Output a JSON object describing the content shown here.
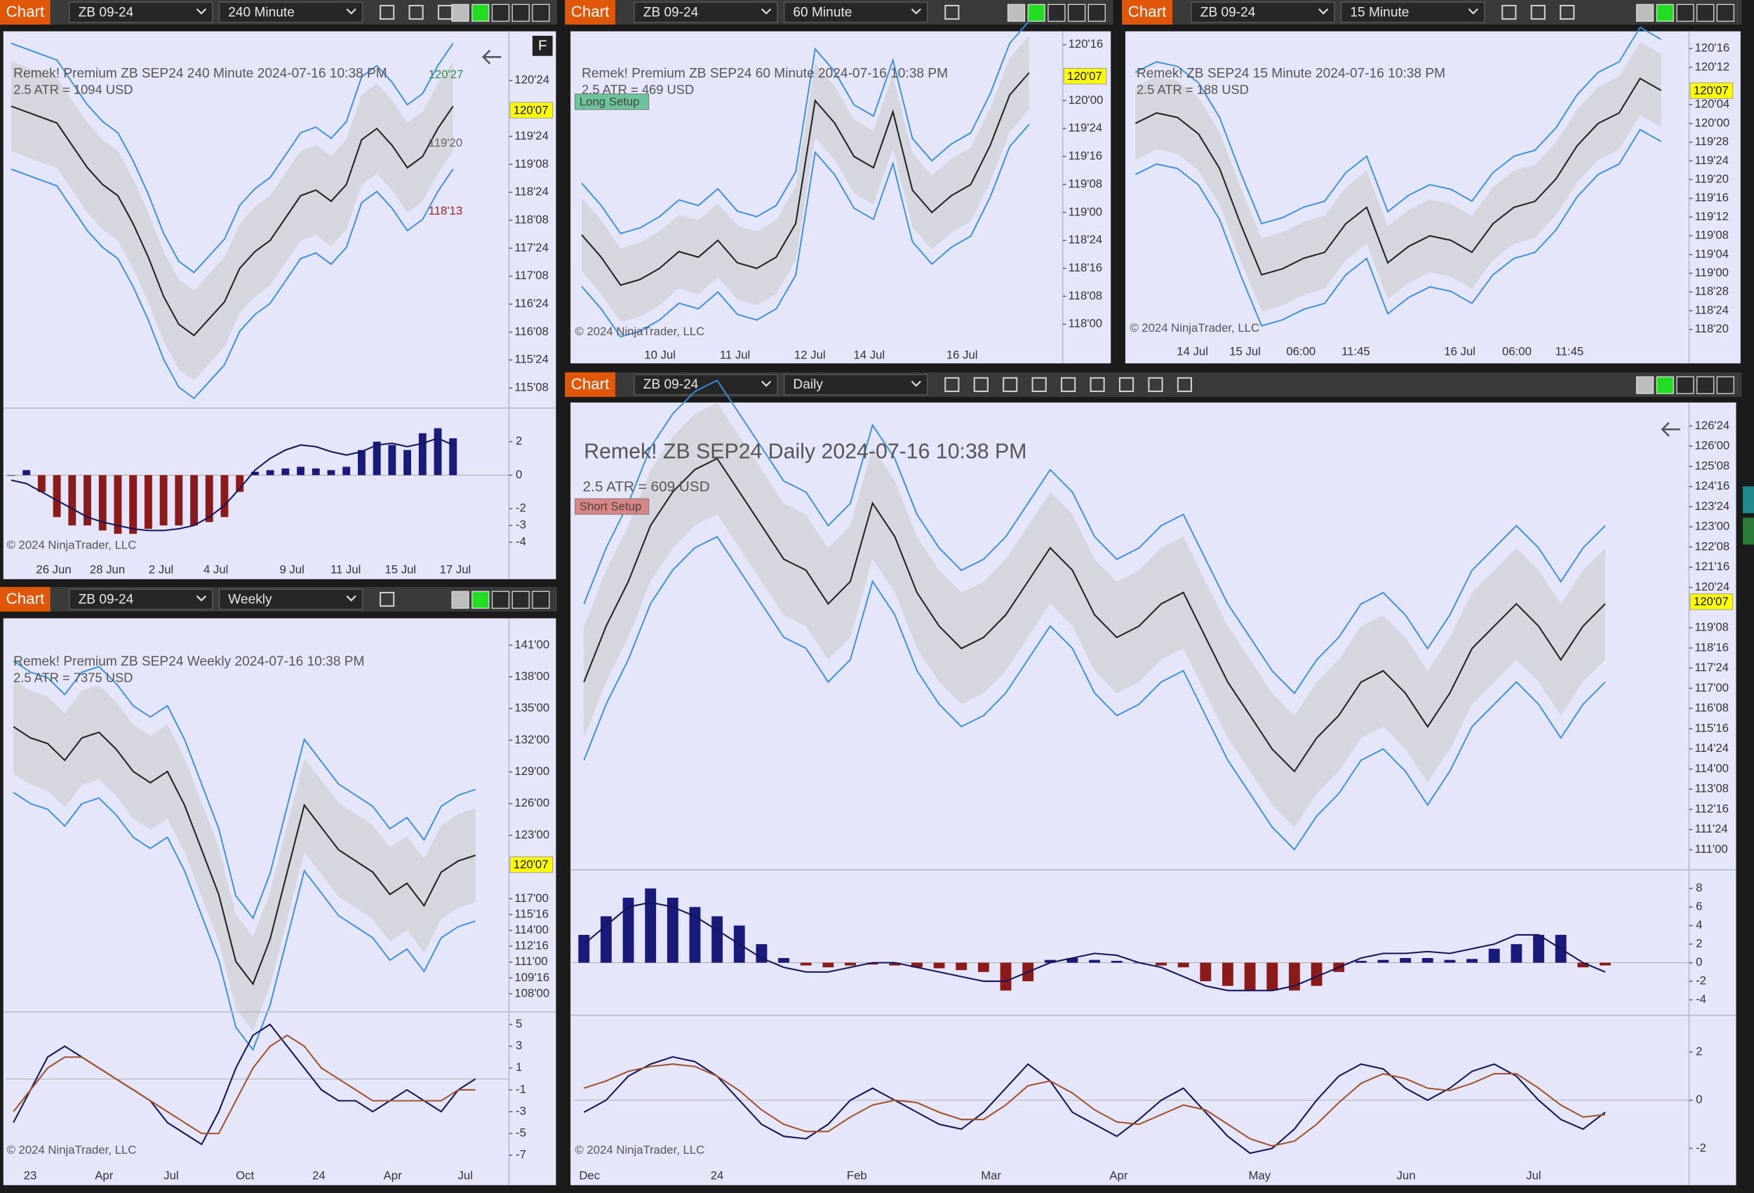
{
  "panels": [
    {
      "tab": "Chart",
      "instrument": "ZB 09-24",
      "period": "240 Minute",
      "header": "Remek!  Premium  ZB SEP24  240 Minute  2024-07-16 10:38 PM",
      "atr": "2.5 ATR = 1094 USD",
      "copyright": "© 2024 NinjaTrader, LLC",
      "button": "F",
      "price_marker": {
        "value": 120.21875,
        "label": "120'07"
      },
      "ylim": [
        114.89,
        121.59
      ],
      "yticks": [
        {
          "value": 120.75,
          "label": "120'24"
        },
        {
          "value": 119.75,
          "label": "119'24"
        },
        {
          "value": 119.25,
          "label": "119'08"
        },
        {
          "value": 118.75,
          "label": "118'24"
        },
        {
          "value": 118.25,
          "label": "118'08"
        },
        {
          "value": 117.75,
          "label": "117'24"
        },
        {
          "value": 117.25,
          "label": "117'08"
        },
        {
          "value": 116.75,
          "label": "116'24"
        },
        {
          "value": 116.25,
          "label": "116'08"
        },
        {
          "value": 115.75,
          "label": "115'24"
        },
        {
          "value": 115.25,
          "label": "115'08"
        }
      ],
      "annotations": [
        {
          "value": 120.84375,
          "label": "120'27",
          "color": "#2e8b57"
        },
        {
          "value": 119.625,
          "label": "119'20",
          "color": "#666666"
        },
        {
          "value": 118.40625,
          "label": "118'13",
          "color": "#a02020"
        }
      ],
      "xticks": [
        "26 Jun",
        "28 Jun",
        "2 Jul",
        "4 Jul",
        "9 Jul",
        "11 Jul",
        "15 Jul",
        "17 Jul"
      ],
      "closes": [
        120.29,
        120.19,
        120.09,
        119.99,
        119.59,
        119.19,
        118.89,
        118.69,
        118.19,
        117.59,
        116.89,
        116.39,
        116.19,
        116.49,
        116.79,
        117.39,
        117.69,
        117.89,
        118.29,
        118.69,
        118.79,
        118.59,
        118.89,
        119.69,
        119.89,
        119.59,
        119.19,
        119.39,
        119.89,
        120.29
      ],
      "indicators": [
        {
          "ylim": [
            -4.67,
            4
          ],
          "yticks": [
            2,
            0,
            -2,
            -3,
            -4
          ],
          "series": [
            {
              "type": "bar",
              "color": "#1a1a7a",
              "negative_color": "#8b1a1a",
              "values": [
                0,
                0.3,
                -1,
                -2.5,
                -3,
                -3,
                -3.3,
                -3.5,
                -3.5,
                -3.2,
                -3,
                -3,
                -3,
                -2.8,
                -2.5,
                -1,
                0.2,
                0.3,
                0.4,
                0.5,
                0.4,
                0.3,
                0.5,
                1.5,
                2,
                1.8,
                1.5,
                2.5,
                2.8,
                2.2
              ]
            },
            {
              "type": "line",
              "color": "#14145a",
              "values": [
                -0.3,
                -0.5,
                -1,
                -1.5,
                -2,
                -2.5,
                -2.8,
                -3,
                -3.2,
                -3.3,
                -3.3,
                -3.2,
                -3,
                -2.5,
                -1.8,
                -0.8,
                0.3,
                1,
                1.5,
                1.8,
                1.7,
                1.4,
                1.2,
                1.4,
                1.8,
                1.9,
                1.7,
                1.9,
                2.2,
                1.8
              ]
            }
          ]
        }
      ]
    },
    {
      "tab": "Chart",
      "instrument": "ZB 09-24",
      "period": "60 Minute",
      "header": "Remek!  Premium  ZB SEP24  60 Minute  2024-07-16 10:38 PM",
      "atr": "2.5 ATR = 469 USD",
      "setup": {
        "label": "Long Setup",
        "color": "#6cc49a"
      },
      "copyright": "© 2024 NinjaTrader, LLC",
      "price_marker": {
        "value": 120.21875,
        "label": "120'07"
      },
      "ylim": [
        117.85,
        120.6
      ],
      "yticks": [
        {
          "value": 120.5,
          "label": "120'16"
        },
        {
          "value": 120,
          "label": "120'00"
        },
        {
          "value": 119.75,
          "label": "119'24"
        },
        {
          "value": 119.5,
          "label": "119'16"
        },
        {
          "value": 119.25,
          "label": "119'08"
        },
        {
          "value": 119,
          "label": "119'00"
        },
        {
          "value": 118.75,
          "label": "118'24"
        },
        {
          "value": 118.5,
          "label": "118'16"
        },
        {
          "value": 118.25,
          "label": "118'08"
        },
        {
          "value": 118,
          "label": "118'00"
        }
      ],
      "xticks": [
        "10 Jul",
        "11 Jul",
        "12 Jul",
        "14 Jul",
        "16 Jul"
      ],
      "closes": [
        118.8,
        118.6,
        118.35,
        118.4,
        118.5,
        118.65,
        118.6,
        118.75,
        118.55,
        118.5,
        118.6,
        118.9,
        120.0,
        119.8,
        119.5,
        119.4,
        119.9,
        119.2,
        119.0,
        119.15,
        119.25,
        119.6,
        120.05,
        120.25
      ],
      "indicators": []
    },
    {
      "tab": "Chart",
      "instrument": "ZB 09-24",
      "period": "15 Minute",
      "header": "Remek!  ZB SEP24  15 Minute  2024-07-16 10:38 PM",
      "atr": "2.5 ATR = 188 USD",
      "copyright": "© 2024 NinjaTrader, LLC",
      "price_marker": {
        "value": 120.21875,
        "label": "120'07"
      },
      "ylim": [
        118.57,
        120.6
      ],
      "yticks": [
        {
          "value": 120.5,
          "label": "120'16"
        },
        {
          "value": 120.375,
          "label": "120'12"
        },
        {
          "value": 120.125,
          "label": "120'04"
        },
        {
          "value": 120,
          "label": "120'00"
        },
        {
          "value": 119.875,
          "label": "119'28"
        },
        {
          "value": 119.75,
          "label": "119'24"
        },
        {
          "value": 119.625,
          "label": "119'20"
        },
        {
          "value": 119.5,
          "label": "119'16"
        },
        {
          "value": 119.375,
          "label": "119'12"
        },
        {
          "value": 119.25,
          "label": "119'08"
        },
        {
          "value": 119.125,
          "label": "119'04"
        },
        {
          "value": 119,
          "label": "119'00"
        },
        {
          "value": 118.875,
          "label": "118'28"
        },
        {
          "value": 118.75,
          "label": "118'24"
        },
        {
          "value": 118.625,
          "label": "118'20"
        }
      ],
      "xticks": [
        "14 Jul",
        "15 Jul",
        "06:00",
        "11:45",
        "16 Jul",
        "06:00",
        "11:45"
      ],
      "closes": [
        120.0,
        120.07,
        120.04,
        119.93,
        119.7,
        119.33,
        118.99,
        119.03,
        119.1,
        119.14,
        119.33,
        119.44,
        119.07,
        119.18,
        119.25,
        119.22,
        119.14,
        119.33,
        119.44,
        119.48,
        119.63,
        119.85,
        120.0,
        120.07,
        120.3,
        120.22
      ],
      "indicators": []
    },
    {
      "tab": "Chart",
      "instrument": "ZB 09-24",
      "period": "Weekly",
      "header": "Remek!  Premium  ZB SEP24  Weekly  2024-07-16 10:38 PM",
      "atr": "2.5 ATR = 7375 USD",
      "copyright": "© 2024 NinjaTrader, LLC",
      "price_marker": {
        "value": 120.21875,
        "label": "120'07"
      },
      "ylim": [
        106.29,
        143.33
      ],
      "yticks": [
        {
          "value": 141,
          "label": "141'00"
        },
        {
          "value": 138,
          "label": "138'00"
        },
        {
          "value": 135,
          "label": "135'00"
        },
        {
          "value": 132,
          "label": "132'00"
        },
        {
          "value": 129,
          "label": "129'00"
        },
        {
          "value": 126,
          "label": "126'00"
        },
        {
          "value": 123,
          "label": "123'00"
        },
        {
          "value": 117,
          "label": "117'00"
        },
        {
          "value": 115.5,
          "label": "115'16"
        },
        {
          "value": 114,
          "label": "114'00"
        },
        {
          "value": 112.5,
          "label": "112'16"
        },
        {
          "value": 111,
          "label": "111'00"
        },
        {
          "value": 109.5,
          "label": "109'16"
        },
        {
          "value": 108,
          "label": "108'00"
        }
      ],
      "xticks": [
        "23",
        "Apr",
        "Jul",
        "Oct",
        "24",
        "Apr",
        "Jul"
      ],
      "closes": [
        133.28,
        132.22,
        131.69,
        130.1,
        132.22,
        132.75,
        131.16,
        129.04,
        127.98,
        129.04,
        125.86,
        121.63,
        117.4,
        111.05,
        108.93,
        113.17,
        119.52,
        125.86,
        123.75,
        121.63,
        120.58,
        119.52,
        117.4,
        118.46,
        116.34,
        119.52,
        120.58,
        121.11
      ],
      "indicators": [
        {
          "ylim": [
            -7.69,
            6.15
          ],
          "yticks": [
            5,
            3,
            1,
            -1,
            -3,
            -5,
            -7
          ],
          "series": [
            {
              "type": "line",
              "color": "#14145a",
              "values": [
                -4,
                -1,
                2,
                3,
                2,
                1,
                0,
                -1,
                -2,
                -4,
                -5,
                -6,
                -3,
                1,
                4,
                5,
                3,
                1,
                -1,
                -2,
                -2,
                -3,
                -2,
                -1,
                -2,
                -3,
                -1,
                0
              ]
            },
            {
              "type": "line",
              "color": "#a0522d",
              "values": [
                -3,
                -1,
                1,
                2,
                2,
                1,
                0,
                -1,
                -2,
                -3,
                -4,
                -5,
                -5,
                -2,
                1,
                3,
                4,
                3,
                1,
                0,
                -1,
                -2,
                -2,
                -2,
                -2,
                -2,
                -1,
                -1
              ]
            }
          ]
        }
      ]
    },
    {
      "tab": "Chart",
      "instrument": "ZB 09-24",
      "period": "Daily",
      "header": "Remek!  ZB SEP24  Daily  2024-07-16 10:38 PM",
      "atr": "2.5 ATR = 609 USD",
      "setup": {
        "label": "Short Setup",
        "color": "#d98585"
      },
      "copyright": "© 2024 NinjaTrader, LLC",
      "price_marker": {
        "value": 120.21875,
        "label": "120'07"
      },
      "ylim": [
        110.25,
        127.54
      ],
      "yticks": [
        {
          "value": 126.75,
          "label": "126'24"
        },
        {
          "value": 126,
          "label": "126'00"
        },
        {
          "value": 125.25,
          "label": "125'08"
        },
        {
          "value": 124.5,
          "label": "124'16"
        },
        {
          "value": 123.75,
          "label": "123'24"
        },
        {
          "value": 123,
          "label": "123'00"
        },
        {
          "value": 122.25,
          "label": "122'08"
        },
        {
          "value": 121.5,
          "label": "121'16"
        },
        {
          "value": 120.75,
          "label": "120'24"
        },
        {
          "value": 119.25,
          "label": "119'08"
        },
        {
          "value": 118.5,
          "label": "118'16"
        },
        {
          "value": 117.75,
          "label": "117'24"
        },
        {
          "value": 117,
          "label": "117'00"
        },
        {
          "value": 116.25,
          "label": "116'08"
        },
        {
          "value": 115.5,
          "label": "115'16"
        },
        {
          "value": 114.75,
          "label": "114'24"
        },
        {
          "value": 114,
          "label": "114'00"
        },
        {
          "value": 113.25,
          "label": "113'08"
        },
        {
          "value": 112.5,
          "label": "112'16"
        },
        {
          "value": 111.75,
          "label": "111'24"
        },
        {
          "value": 111,
          "label": "111'00"
        }
      ],
      "xticks": [
        "Dec",
        "24",
        "Feb",
        "Mar",
        "Apr",
        "May",
        "Jun",
        "Jul"
      ],
      "closes": [
        117.23,
        119.31,
        120.97,
        123.05,
        124.3,
        125.13,
        125.54,
        124.3,
        123.05,
        121.8,
        121.39,
        120.14,
        120.97,
        123.88,
        122.64,
        120.56,
        119.31,
        118.48,
        118.89,
        119.73,
        120.97,
        122.22,
        121.39,
        119.73,
        118.89,
        119.31,
        120.14,
        120.56,
        118.89,
        117.23,
        115.99,
        114.74,
        113.91,
        115.15,
        115.99,
        117.23,
        117.65,
        116.82,
        115.57,
        116.82,
        118.48,
        119.31,
        120.14,
        119.31,
        118.06,
        119.31,
        120.14
      ],
      "indicators": [
        {
          "ylim": [
            -5.66,
            10
          ],
          "yticks": [
            8,
            6,
            4,
            2,
            0,
            -2,
            -4
          ],
          "series": [
            {
              "type": "bar",
              "color": "#1a1a7a",
              "negative_color": "#8b1a1a",
              "values": [
                3,
                5,
                7,
                8,
                7,
                6,
                5,
                4,
                2,
                0.5,
                -0.3,
                -0.5,
                -0.3,
                -0.2,
                -0.3,
                -0.5,
                -0.6,
                -0.8,
                -1,
                -3,
                -2,
                0.3,
                0.5,
                0.3,
                0.2,
                0,
                -0.3,
                -0.5,
                -2,
                -2.5,
                -3,
                -3,
                -3,
                -2.5,
                -1,
                0.2,
                0.3,
                0.5,
                0.5,
                0.3,
                0.4,
                1.5,
                2,
                3,
                3,
                -0.5,
                -0.3
              ]
            },
            {
              "type": "line",
              "color": "#14145a",
              "values": [
                2,
                4,
                6,
                6.5,
                6,
                5,
                3.5,
                2,
                0.5,
                -0.5,
                -1,
                -1,
                -0.5,
                0,
                0,
                -0.5,
                -1,
                -1.5,
                -2,
                -2,
                -1,
                0,
                0.5,
                1,
                0.8,
                0,
                -0.5,
                -1.5,
                -2.5,
                -3,
                -3,
                -3,
                -2.5,
                -1.5,
                -0.5,
                0.5,
                1,
                1,
                1.2,
                1,
                1.5,
                2,
                3,
                3,
                1.5,
                0,
                -1
              ]
            }
          ]
        },
        {
          "ylim": [
            -2.6,
            3.53
          ],
          "yticks": [
            2,
            0,
            -2
          ],
          "series": [
            {
              "type": "line",
              "color": "#14145a",
              "values": [
                -0.5,
                0,
                1,
                1.5,
                1.8,
                1.6,
                1,
                0,
                -1,
                -1.5,
                -1.6,
                -1,
                0,
                0.5,
                0,
                -0.5,
                -1,
                -1.2,
                -0.5,
                0.5,
                1.5,
                0.8,
                -0.5,
                -1,
                -1.5,
                -0.8,
                0,
                0.5,
                -0.5,
                -1.5,
                -2.2,
                -2,
                -1.2,
                0,
                1,
                1.5,
                1.3,
                0.5,
                0,
                0.5,
                1.2,
                1.5,
                1,
                0,
                -0.8,
                -1.2,
                -0.5
              ]
            },
            {
              "type": "line",
              "color": "#a0522d",
              "values": [
                0.5,
                0.8,
                1.2,
                1.4,
                1.5,
                1.4,
                1,
                0.4,
                -0.4,
                -1,
                -1.3,
                -1.3,
                -0.7,
                -0.2,
                0,
                -0.1,
                -0.5,
                -0.8,
                -0.8,
                -0.2,
                0.6,
                0.8,
                0.3,
                -0.4,
                -0.9,
                -1,
                -0.6,
                -0.2,
                -0.4,
                -1,
                -1.6,
                -1.9,
                -1.7,
                -1,
                -0.1,
                0.7,
                1.1,
                0.9,
                0.5,
                0.4,
                0.7,
                1.1,
                1.1,
                0.5,
                -0.2,
                -0.7,
                -0.6
              ]
            }
          ]
        }
      ]
    }
  ]
}
